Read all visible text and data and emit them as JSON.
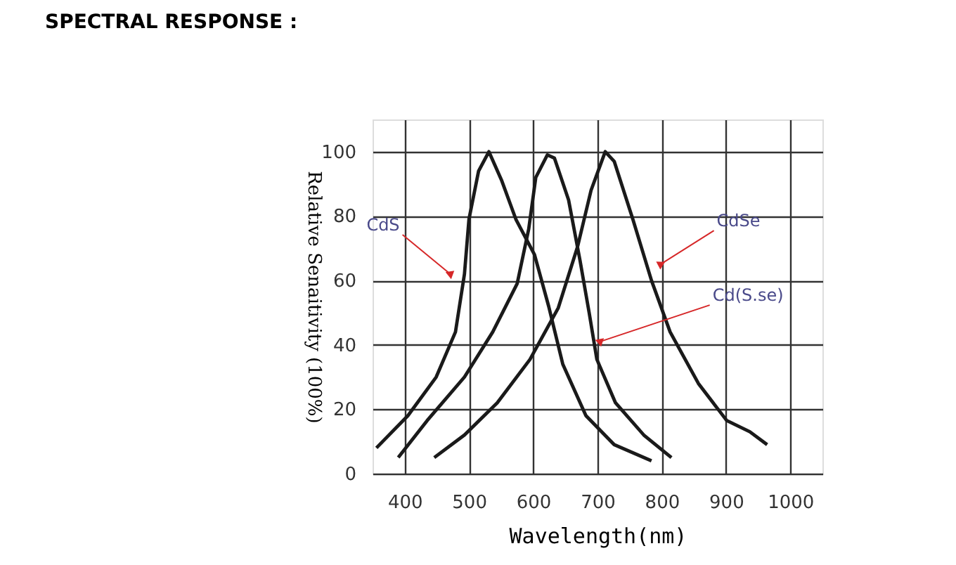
{
  "chart_data": {
    "type": "line",
    "title": "SPECTRAL RESPONSE :",
    "xlabel": "Wavelength(nm)",
    "ylabel": "Relative Senaitivity (100%)",
    "xlim": [
      350,
      1050
    ],
    "ylim": [
      0,
      110
    ],
    "xticks": [
      400,
      500,
      600,
      700,
      800,
      900,
      1000
    ],
    "yticks": [
      0,
      20,
      40,
      60,
      80,
      100
    ],
    "grid": true,
    "marker": "none",
    "line_style": "solid",
    "series": [
      {
        "color": "#1a1a1a",
        "x": [
          356,
          405,
          449,
          479,
          493,
          500,
          515,
          531,
          551,
          573,
          602,
          624,
          646,
          682,
          726,
          784
        ],
        "values": [
          8,
          18,
          30,
          44,
          62,
          79,
          94,
          100,
          91,
          79,
          68,
          52,
          34,
          18,
          9,
          4
        ]
      },
      {
        "color": "#1a1a1a",
        "x": [
          390,
          435,
          493,
          537,
          575,
          593,
          604,
          622,
          633,
          655,
          673,
          687,
          699,
          728,
          772,
          815
        ],
        "values": [
          5,
          16.5,
          30,
          44,
          59,
          76,
          92,
          99,
          98,
          85,
          66,
          50,
          35.5,
          22,
          12,
          5
        ]
      },
      {
        "color": "#1a1a1a",
        "x": [
          446,
          493,
          544,
          595,
          639,
          669,
          690,
          712,
          726,
          755,
          784,
          813,
          857,
          901,
          937,
          964
        ],
        "values": [
          5,
          12,
          22,
          35.5,
          51.5,
          70.5,
          88,
          100,
          97,
          79,
          60,
          44,
          28,
          16.5,
          13,
          9
        ]
      }
    ],
    "annotations": [
      {
        "text": "CdS",
        "x": 471,
        "y": 62
      },
      {
        "text": "CdSe",
        "x": 798,
        "y": 65
      },
      {
        "text": "Cd(S.se)",
        "x": 704,
        "y": 41
      }
    ]
  }
}
